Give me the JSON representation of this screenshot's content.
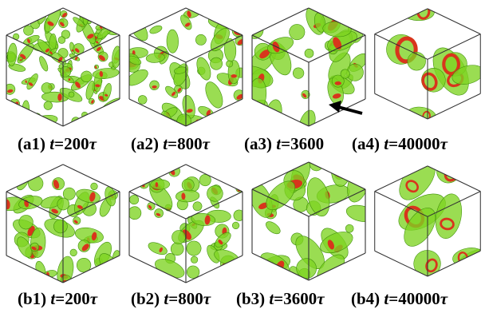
{
  "figure": {
    "colors": {
      "domain_fill": "#7ed321",
      "domain_stroke": "#3f8f0a",
      "core": "#d8351c",
      "cube_edge": "#333333",
      "arrow": "#000000"
    },
    "rows": [
      {
        "panels": [
          {
            "id": "a1",
            "label": "(a1)",
            "var": "t",
            "eq": "=",
            "value": "200",
            "unit": "τ",
            "density": "dense-small",
            "seed": 11
          },
          {
            "id": "a2",
            "label": "(a2)",
            "var": "t",
            "eq": "=",
            "value": "800",
            "unit": "τ",
            "density": "medium",
            "seed": 23
          },
          {
            "id": "a3",
            "label": "(a3)",
            "var": "t",
            "eq": "=",
            "value": "3600",
            "unit": "",
            "density": "medium-large",
            "seed": 37,
            "arrow": "arrow-icon"
          },
          {
            "id": "a4",
            "label": "(a4)",
            "var": "t",
            "eq": "=",
            "value": "40000",
            "unit": "τ",
            "density": "sparse-large",
            "seed": 53
          }
        ]
      },
      {
        "panels": [
          {
            "id": "b1",
            "label": "(b1)",
            "var": "t",
            "eq": "=",
            "value": "200",
            "unit": "τ",
            "density": "medium",
            "seed": 61
          },
          {
            "id": "b2",
            "label": "(b2)",
            "var": "t",
            "eq": "=",
            "value": "800",
            "unit": "τ",
            "density": "medium",
            "seed": 71
          },
          {
            "id": "b3",
            "label": "(b3)",
            "var": "t",
            "eq": "=",
            "value": "3600",
            "unit": "τ",
            "density": "medium-large",
            "seed": 83
          },
          {
            "id": "b4",
            "label": "(b4)",
            "var": "t",
            "eq": "=",
            "value": "40000",
            "unit": "τ",
            "density": "sparse-large",
            "seed": 97
          }
        ]
      }
    ]
  }
}
